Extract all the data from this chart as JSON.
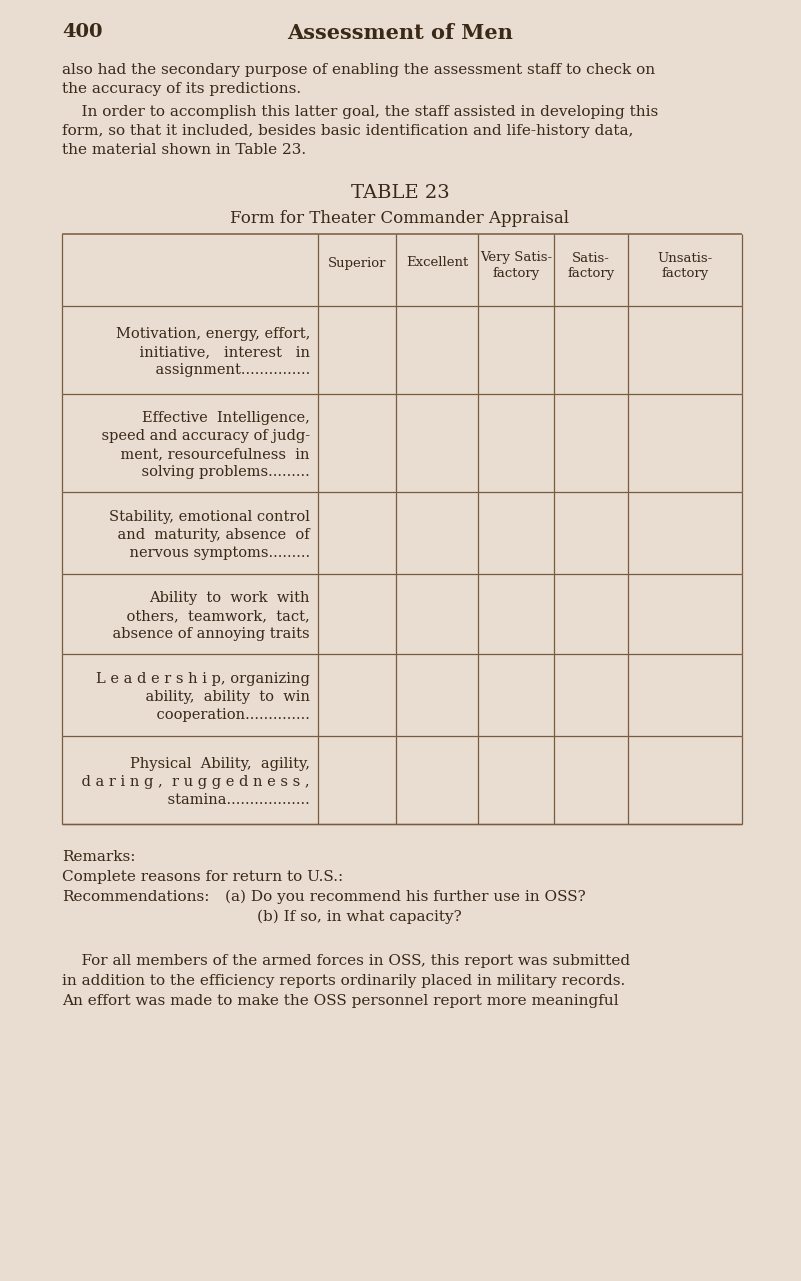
{
  "bg_color": "#e8ddd0",
  "text_color": "#3a2818",
  "line_color": "#7a5a40",
  "page_number": "400",
  "page_title": "Assessment of Men",
  "para1_lines": [
    "also had the secondary purpose of enabling the assessment staff to check on",
    "the accuracy of its predictions."
  ],
  "para2_lines": [
    "    In order to accomplish this latter goal, the staff assisted in developing this",
    "form, so that it included, besides basic identification and life-history data,",
    "the material shown in Table 23."
  ],
  "table_title": "TABLE 23",
  "table_subtitle": "Form for Theater Commander Appraisal",
  "col_headers": [
    "Superior",
    "Excellent",
    "Very Satis-\nfactory",
    "Satis-\nfactory",
    "Unsatis-\nfactory"
  ],
  "row_lines": [
    [
      "Motivation, energy, effort,",
      "    initiative,   interest   in",
      "    assignment..............."
    ],
    [
      "Effective  Intelligence,",
      "    speed and accuracy of judg-",
      "    ment, resourcefulness  in",
      "    solving problems........."
    ],
    [
      "Stability, emotional control",
      "    and  maturity, absence  of",
      "    nervous symptoms........."
    ],
    [
      "Ability  to  work  with",
      "    others,  teamwork,  tact,",
      "    absence of annoying traits"
    ],
    [
      "L e a d e r s h i p, organizing",
      "    ability,  ability  to  win",
      "    cooperation.............."
    ],
    [
      "Physical  Ability,  agility,",
      "    d a r i n g ,  r u g g e d n e s s ,",
      "    stamina.................."
    ]
  ],
  "row_sc_flags": [
    true,
    true,
    true,
    true,
    true,
    true
  ],
  "remarks_lines": [
    "Remarks:",
    "Complete reasons for return to U.S.:",
    "Recommendations:  (a) Do you recommend his further use in OSS?",
    "                        (b) If so, in what capacity?"
  ],
  "closing_lines": [
    "    For all members of the armed forces in OSS, this report was submitted",
    "in addition to the efficiency reports ordinarily placed in military records.",
    "An effort was made to make the OSS personnel report more meaningful"
  ]
}
